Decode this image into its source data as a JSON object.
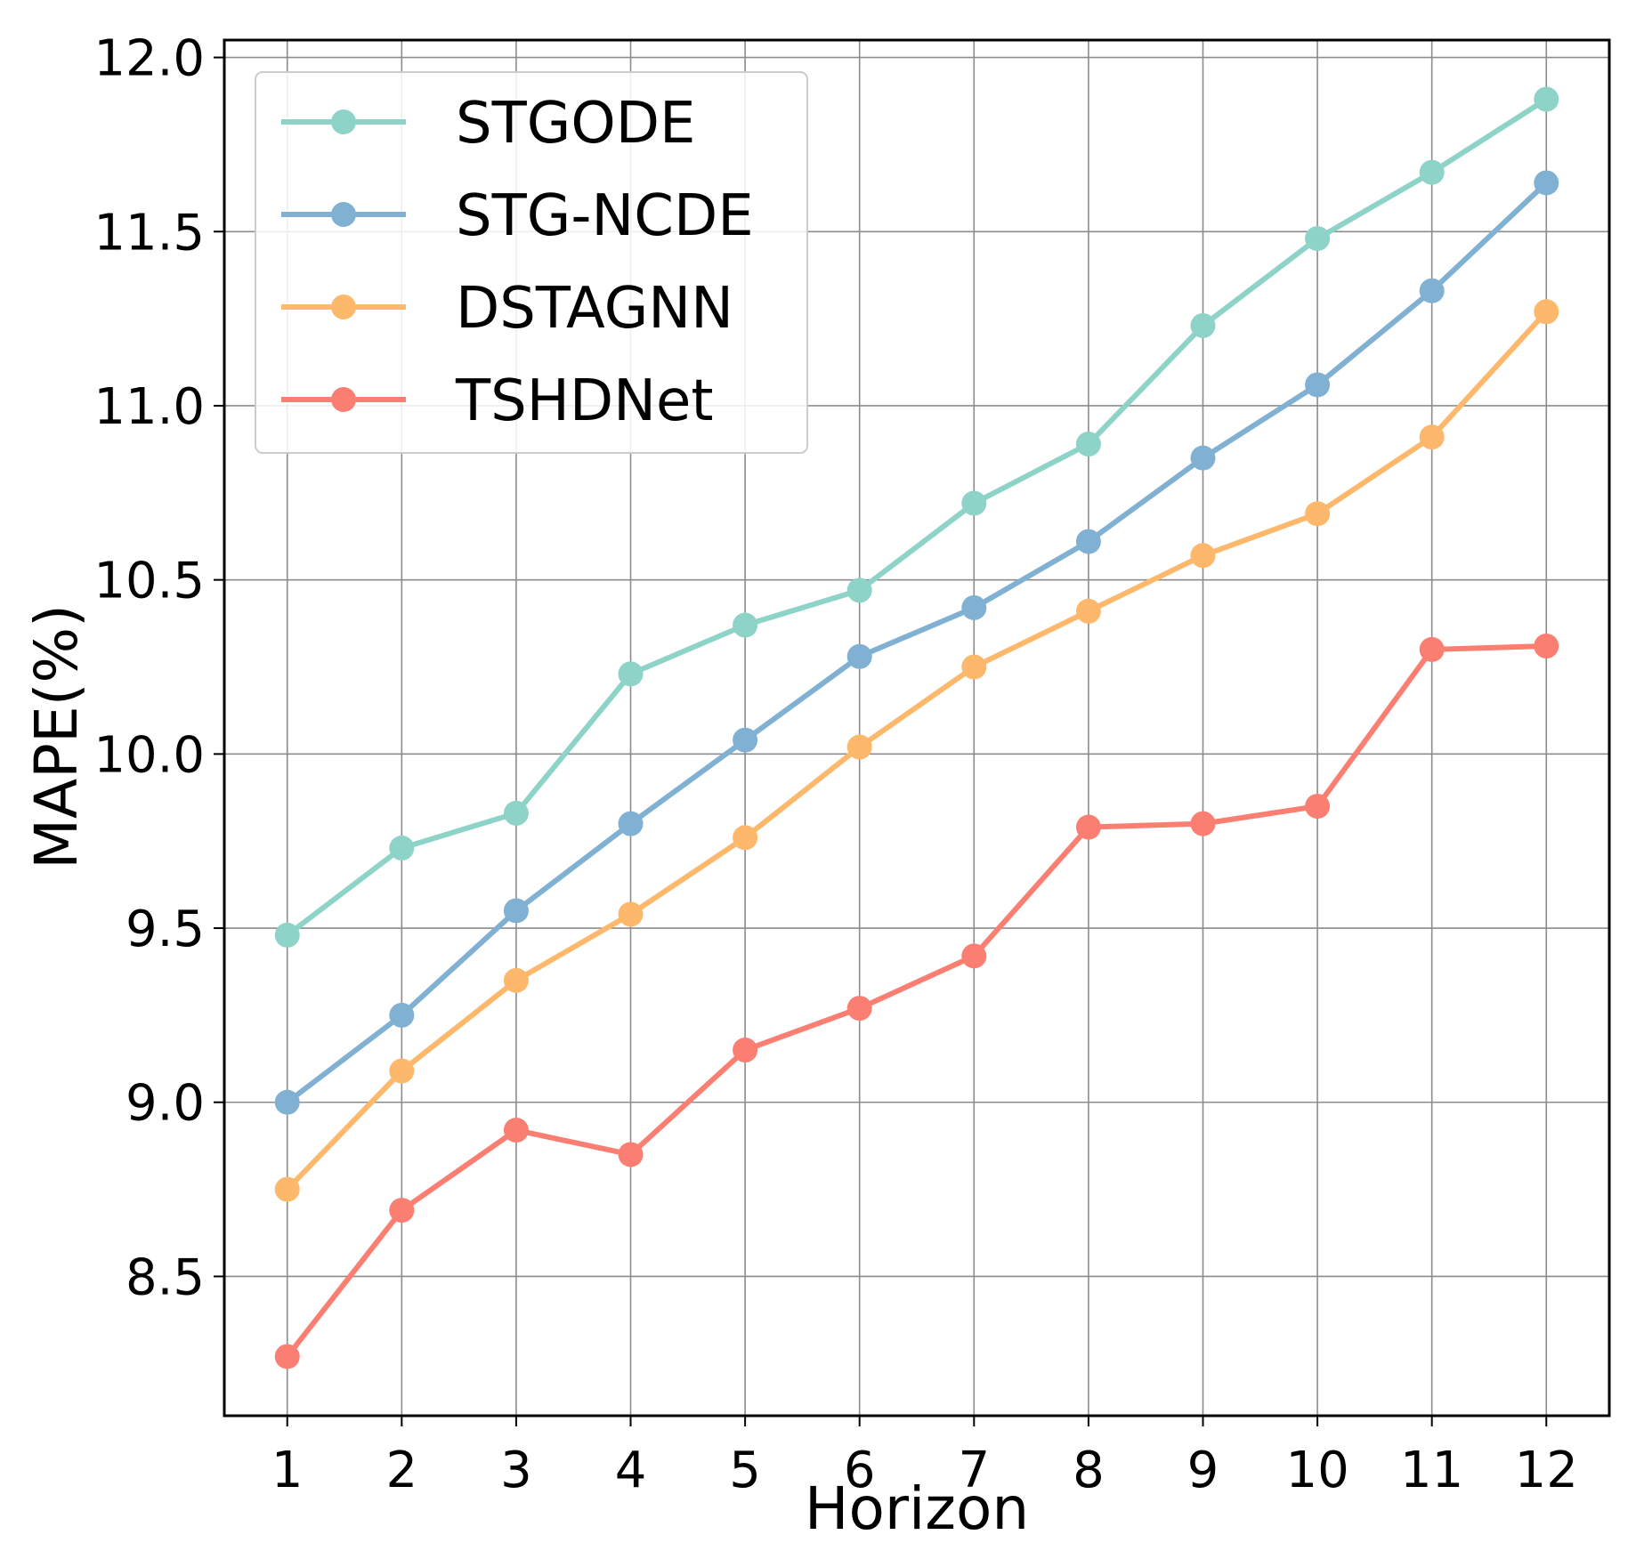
{
  "chart_data": {
    "type": "line",
    "title": "",
    "xlabel": "Horizon",
    "ylabel": "MAPE(%)",
    "x": [
      1,
      2,
      3,
      4,
      5,
      6,
      7,
      8,
      9,
      10,
      11,
      12
    ],
    "x_tick_labels": [
      "1",
      "2",
      "3",
      "4",
      "5",
      "6",
      "7",
      "8",
      "9",
      "10",
      "11",
      "12"
    ],
    "xlim": [
      0.45,
      12.55
    ],
    "ylim": [
      8.1,
      12.05
    ],
    "y_ticks": [
      8.5,
      9.0,
      9.5,
      10.0,
      10.5,
      11.0,
      11.5,
      12.0
    ],
    "y_tick_labels": [
      "8.5",
      "9.0",
      "9.5",
      "10.0",
      "10.5",
      "11.0",
      "11.5",
      "12.0"
    ],
    "grid": true,
    "legend_position": "top-left",
    "series": [
      {
        "name": "STGODE",
        "color": "#8dd3c7",
        "marker": "circle",
        "values": [
          9.48,
          9.73,
          9.83,
          10.23,
          10.37,
          10.47,
          10.72,
          10.89,
          11.23,
          11.48,
          11.67,
          11.88
        ]
      },
      {
        "name": "STG-NCDE",
        "color": "#80b1d3",
        "marker": "circle",
        "values": [
          9.0,
          9.25,
          9.55,
          9.8,
          10.04,
          10.28,
          10.42,
          10.61,
          10.85,
          11.06,
          11.33,
          11.64
        ]
      },
      {
        "name": "DSTAGNN",
        "color": "#fdb86b",
        "marker": "circle",
        "values": [
          8.75,
          9.09,
          9.35,
          9.54,
          9.76,
          10.02,
          10.25,
          10.41,
          10.57,
          10.69,
          10.91,
          11.27
        ]
      },
      {
        "name": "TSHDNet",
        "color": "#fa7f72",
        "marker": "circle",
        "values": [
          8.27,
          8.69,
          8.92,
          8.85,
          9.15,
          9.27,
          9.42,
          9.79,
          9.8,
          9.85,
          10.3,
          10.31
        ]
      }
    ]
  }
}
